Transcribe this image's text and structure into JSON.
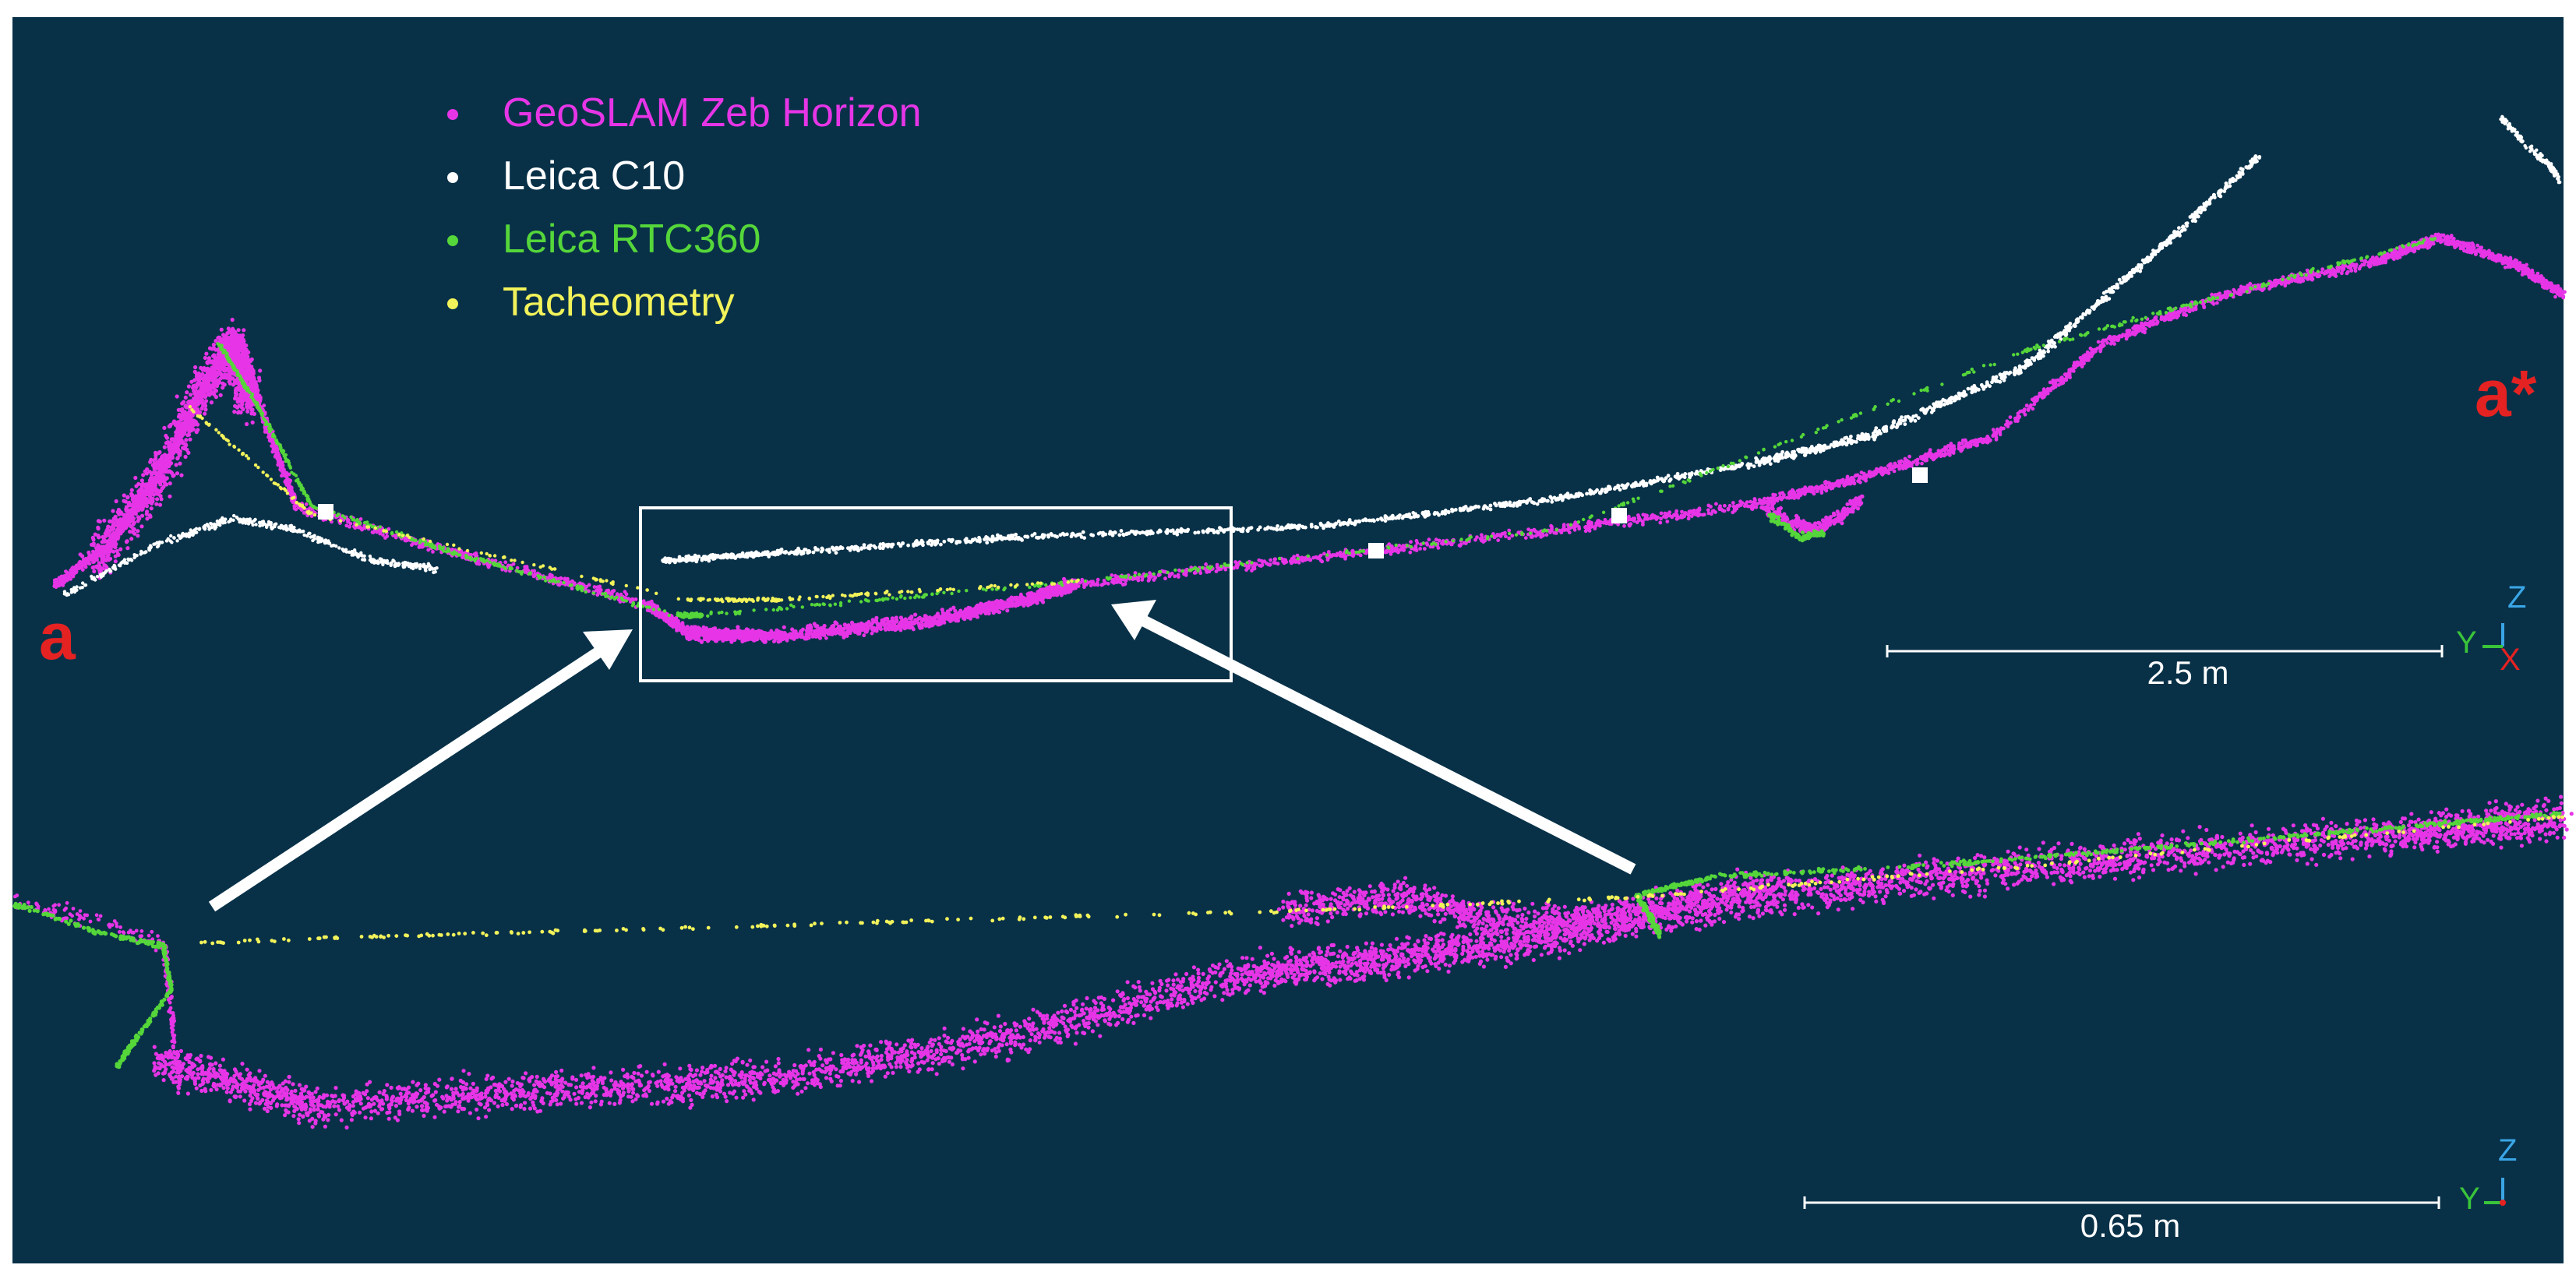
{
  "legend": [
    {
      "label": "GeoSLAM Zeb Horizon",
      "color": "#e635e6"
    },
    {
      "label": "Leica C10",
      "color": "#ffffff"
    },
    {
      "label": "Leica RTC360",
      "color": "#55d63a"
    },
    {
      "label": "Tacheometry",
      "color": "#f2f25a"
    }
  ],
  "profile_labels": {
    "start": "a",
    "end": "a*"
  },
  "scale_bars": {
    "top": "2.5 m",
    "bottom": "0.65 m"
  },
  "axes": {
    "z": "Z",
    "y": "Y",
    "x": "X"
  },
  "colors": {
    "background": "#083148",
    "frame": "#ffffff",
    "marker_red": "#e52222",
    "axis_blue": "#3aa6e6",
    "axis_green": "#3ac43a"
  }
}
